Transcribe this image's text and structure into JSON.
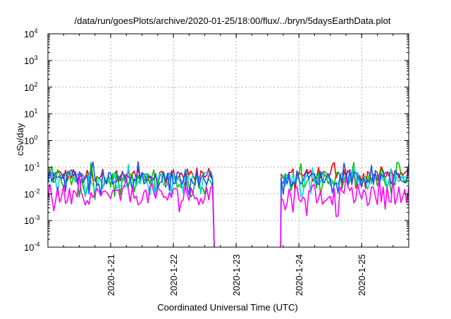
{
  "chart_data": {
    "type": "line",
    "title": "/data/run/goesPlots/archive/2020-01-25/18:00/flux/../bryn/5daysEarthData.plot",
    "xlabel": "Coordinated Universal Time (UTC)",
    "ylabel": "cSv/day",
    "yscale": "log",
    "ylim": [
      0.0001,
      10000
    ],
    "y_ticks": [
      {
        "value": 0.0001,
        "base": "10",
        "exp": "-4"
      },
      {
        "value": 0.001,
        "base": "10",
        "exp": "-3"
      },
      {
        "value": 0.01,
        "base": "10",
        "exp": "-2"
      },
      {
        "value": 0.1,
        "base": "10",
        "exp": "-1"
      },
      {
        "value": 1,
        "base": "10",
        "exp": "0"
      },
      {
        "value": 10,
        "base": "10",
        "exp": "1"
      },
      {
        "value": 100,
        "base": "10",
        "exp": "2"
      },
      {
        "value": 1000,
        "base": "10",
        "exp": "3"
      },
      {
        "value": 10000,
        "base": "10",
        "exp": "4"
      }
    ],
    "xlim": [
      "2020-01-20 00:00",
      "2020-01-25 18:00"
    ],
    "x_ticks": [
      "2020-1-21",
      "2020-1-22",
      "2020-1-23",
      "2020-1-24",
      "2020-1-25"
    ],
    "grid": true,
    "data_gap": {
      "start": "2020-01-22 15:36",
      "end": "2020-01-23 17:00"
    },
    "series": [
      {
        "color": "#ff0000",
        "baseline": 0.05,
        "spread": 0.25
      },
      {
        "color": "#00c000",
        "baseline": 0.032,
        "spread": 0.3
      },
      {
        "color": "#00d8d8",
        "baseline": 0.036,
        "spread": 0.28
      },
      {
        "color": "#2050ff",
        "baseline": 0.04,
        "spread": 0.28
      },
      {
        "color": "#ff00ff",
        "baseline": 0.0085,
        "spread": 0.35
      }
    ]
  }
}
